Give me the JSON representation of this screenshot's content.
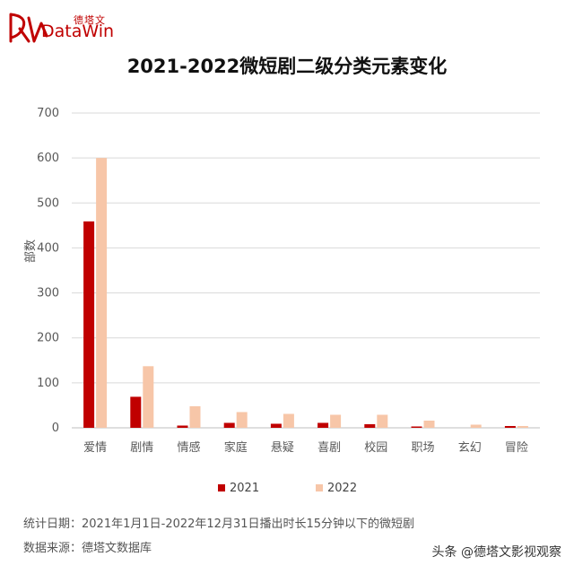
{
  "brand": {
    "cn": "德塔文",
    "en": "DataWin",
    "color": "#c00000"
  },
  "chart_data": {
    "type": "bar",
    "title": "2021-2022微短剧二级分类元素变化",
    "ylabel": "部数",
    "xlabel": "",
    "ylim": [
      0,
      700
    ],
    "yticks": [
      0,
      100,
      200,
      300,
      400,
      500,
      600,
      700
    ],
    "grid": true,
    "legend_position": "bottom-center",
    "categories": [
      "爱情",
      "剧情",
      "情感",
      "家庭",
      "悬疑",
      "喜剧",
      "校园",
      "职场",
      "玄幻",
      "冒险"
    ],
    "series": [
      {
        "name": "2021",
        "color": "#c00000",
        "values": [
          459,
          69,
          5,
          11,
          9,
          11,
          8,
          3,
          0,
          4
        ]
      },
      {
        "name": "2022",
        "color": "#f7c6a8",
        "values": [
          600,
          137,
          48,
          35,
          31,
          29,
          29,
          16,
          7,
          4
        ]
      }
    ]
  },
  "notes": {
    "stat_date": "统计日期：2021年1月1日-2022年12月31日播出时长15分钟以下的微短剧",
    "source": "数据来源：德塔文数据库"
  },
  "watermark": "头条 @德塔文影视观察"
}
